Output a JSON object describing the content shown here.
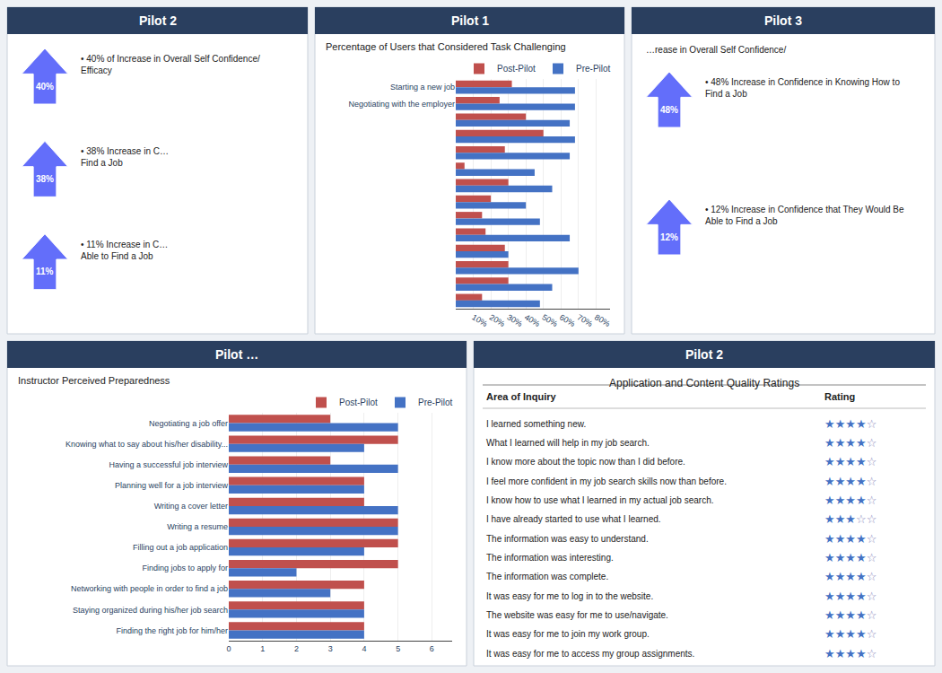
{
  "chart_data": [
    {
      "type": "bullets",
      "title": "Pilot 2",
      "values": [
        40,
        38,
        11
      ],
      "value_labels": [
        "40%",
        "38%",
        "11%"
      ],
      "annotations": [
        "• 40% of Increase in Overall Self Confidence/\nEfficacy",
        "• 38% Increase in C…\nFind a Job",
        "• 11% Increase in C…\nAble to Find a Job"
      ],
      "data_labels": true
    },
    {
      "type": "bar",
      "orientation": "horizontal",
      "title": "Pilot 1",
      "subtitle": "Percentage of Users that Considered Task Challenging",
      "categories": [
        "Starting a new job",
        "Negotiating with the employer",
        null,
        null,
        null,
        null,
        null,
        null,
        null,
        null,
        null,
        null,
        null,
        null
      ],
      "series": [
        {
          "name": "Post-Pilot",
          "color": "#c0504d",
          "values": [
            32,
            25,
            40,
            50,
            28,
            5,
            30,
            20,
            15,
            17,
            28,
            30,
            30,
            15
          ]
        },
        {
          "name": "Pre-Pilot",
          "color": "#4472c4",
          "values": [
            68,
            68,
            65,
            68,
            65,
            45,
            55,
            40,
            48,
            65,
            30,
            70,
            55,
            48
          ]
        }
      ],
      "xlim": [
        0,
        88
      ],
      "xticks": [
        {
          "value": 10,
          "label": "10%"
        },
        {
          "value": 20,
          "label": "20%"
        },
        {
          "value": 30,
          "label": "30%"
        },
        {
          "value": 40,
          "label": "40%"
        },
        {
          "value": 50,
          "label": "50%"
        },
        {
          "value": 60,
          "label": "60%"
        },
        {
          "value": 70,
          "label": "70%"
        },
        {
          "value": 80,
          "label": "80%"
        }
      ],
      "grid": true,
      "legend": "upper right"
    },
    {
      "type": "bar",
      "orientation": "horizontal",
      "title": "Pilot …",
      "subtitle": "Instructor Perceived Preparedness",
      "categories": [
        "Negotiating a job offer",
        "Knowing what to say about his/her disability...",
        "Having a successful job interview",
        "Planning well for a job interview",
        "Writing a cover letter",
        "Writing a resume",
        "Filling out a job application",
        "Finding jobs to apply for",
        "Networking with people in order to find a job",
        "Staying organized during his/her job search",
        "Finding the right job for him/her"
      ],
      "series": [
        {
          "name": "Post-Pilot",
          "color": "#c0504d",
          "values": [
            3,
            5,
            3,
            4,
            4,
            5,
            5,
            5,
            4,
            4,
            4
          ]
        },
        {
          "name": "Pre-Pilot",
          "color": "#4472c4",
          "values": [
            5,
            4,
            5,
            4,
            5,
            5,
            4,
            2,
            3,
            4,
            4
          ]
        }
      ],
      "xlim": [
        0,
        6.6
      ],
      "xticks": [
        0,
        1,
        2,
        3,
        4,
        5,
        6
      ],
      "grid": true,
      "legend": "upper right"
    },
    {
      "type": "bullets",
      "title": "Pilot 3",
      "subtitle": "…rease in Overall Self Confidence/",
      "values": [
        48,
        12
      ],
      "value_labels": [
        "48%",
        "12%"
      ],
      "annotations": [
        "• 48% Increase in Confidence in Knowing How to\nFind a Job",
        "• 12% Increase in Confidence that They Would Be\nAble to Find a Job"
      ],
      "data_labels": true
    },
    {
      "type": "table",
      "title": "Pilot 2",
      "subtitle": "Application and Content Quality Ratings",
      "columns": [
        "Area of Inquiry",
        "Rating"
      ],
      "categories": [
        "I learned something new.",
        "What I learned will help in my job search.",
        "I know more about the topic now than I did before.",
        "I feel more confident in my job search skills now than before.",
        "I know how to use what I learned in my actual job search.",
        "I have already started to use what I learned.",
        "The information was easy to understand.",
        "The information was interesting.",
        "The information was complete.",
        "It was easy for me to log in to the website.",
        "The website was easy for me to use/navigate.",
        "It was easy for me to join my work group.",
        "It was easy for me to access my group assignments."
      ],
      "values": [
        4.5,
        4.0,
        4.5,
        4.5,
        4.0,
        3.5,
        4.5,
        4.5,
        4.0,
        4.5,
        4.5,
        4.5,
        4.0
      ],
      "value_labels": [
        "★★★★☆",
        "★★★★☆",
        "★★★★☆",
        "★★★★☆",
        "★★★★☆",
        "★★★☆☆",
        "★★★★☆",
        "★★★★☆",
        "★★★★☆",
        "★★★★☆",
        "★★★★☆",
        "★★★★☆",
        "★★★★☆"
      ],
      "data_labels": true
    }
  ]
}
